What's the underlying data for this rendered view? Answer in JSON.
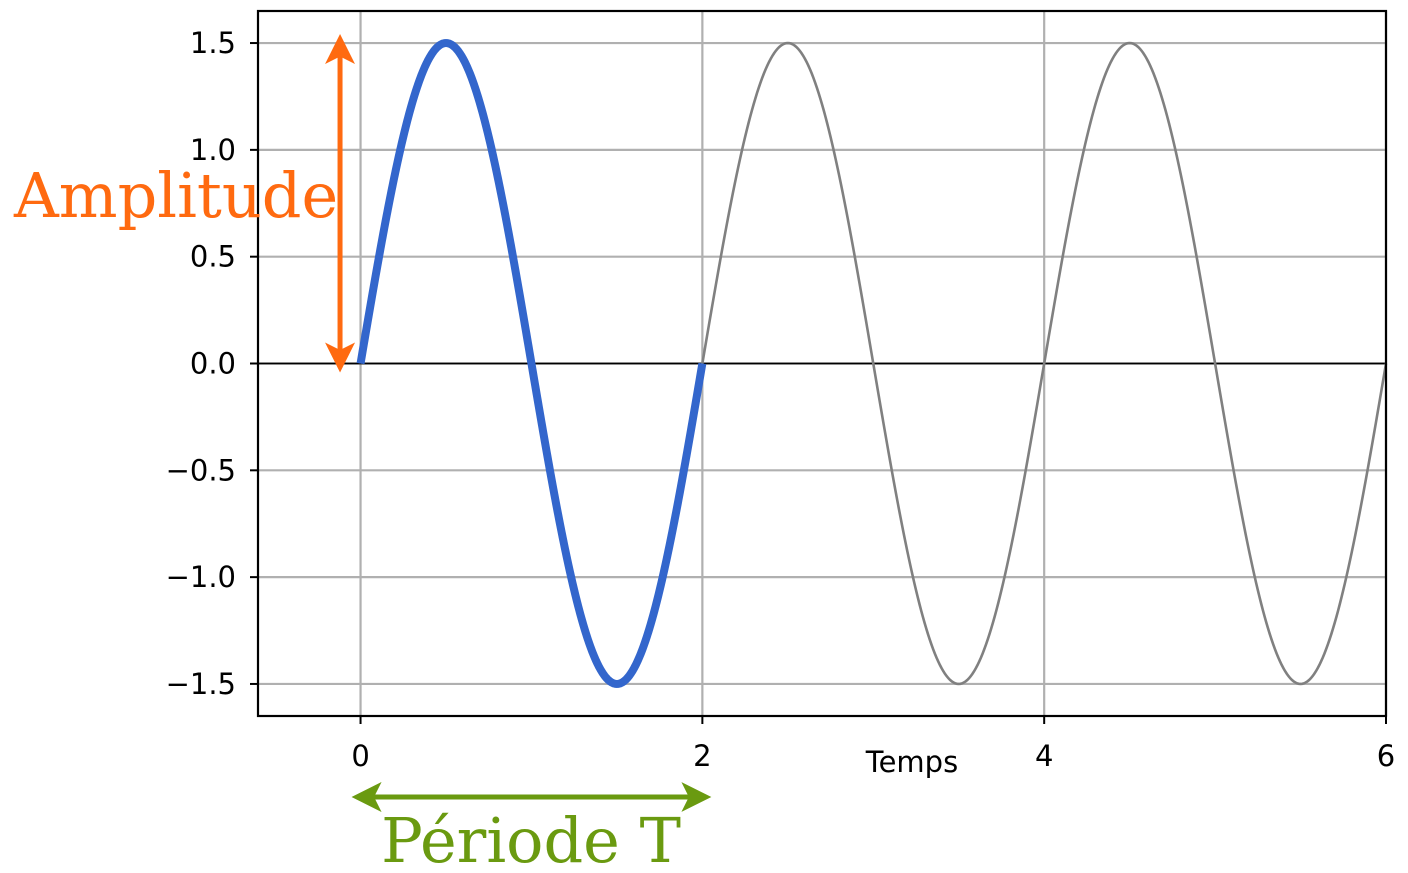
{
  "chart_data": {
    "type": "line",
    "title": "",
    "xlabel": "Temps",
    "ylabel": "",
    "xlim": [
      -0.6,
      6
    ],
    "ylim": [
      -1.65,
      1.65
    ],
    "x_ticks": [
      0,
      2,
      4,
      6
    ],
    "x_tick_labels": [
      "0",
      "2",
      "4",
      "6"
    ],
    "y_ticks": [
      1.5,
      1.0,
      0.5,
      0.0,
      -0.5,
      -1.0,
      -1.5
    ],
    "y_tick_labels": [
      "1.5",
      "1.0",
      "0.5",
      "0.0",
      "−0.5",
      "−1.0",
      "−1.5"
    ],
    "grid": true,
    "function": "1.5 * sin(2π t / 2)",
    "amplitude": 1.5,
    "period": 2,
    "series": [
      {
        "name": "",
        "color": "#808080",
        "x": [
          0,
          0.5,
          1,
          1.5,
          2,
          2.5,
          3,
          3.5,
          4,
          4.5,
          5,
          5.5,
          6
        ],
        "y": [
          0,
          1.5,
          0,
          -1.5,
          0,
          1.5,
          0,
          -1.5,
          0,
          1.5,
          0,
          -1.5,
          0
        ]
      },
      {
        "name": "",
        "color": "#3366cc",
        "x": [
          0,
          0.5,
          1,
          1.5,
          2
        ],
        "y": [
          0,
          1.5,
          0,
          -1.5,
          0
        ]
      }
    ],
    "annotations": [
      {
        "text": "Amplitude",
        "color": "#ff6a10",
        "from": [
          -0.12,
          0
        ],
        "to": [
          -0.12,
          1.5
        ]
      },
      {
        "text": "Période T",
        "color": "#6a9a10",
        "from": [
          0,
          -1.95
        ],
        "to": [
          2,
          -1.95
        ]
      }
    ]
  }
}
